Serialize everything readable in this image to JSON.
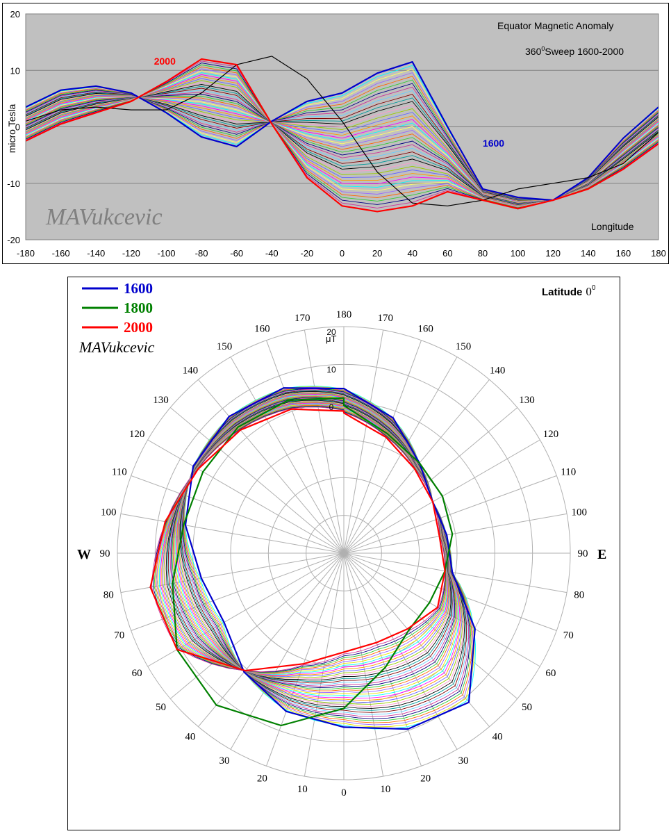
{
  "chart_data": [
    {
      "type": "line",
      "title": "Equator Magnetic Anomaly",
      "subtitle_prefix": "360",
      "subtitle_sup": "0",
      "subtitle_rest": "Sweep 1600-2000",
      "xlabel": "Longitude",
      "ylabel": "micro Tesla",
      "xlim": [
        -180,
        180
      ],
      "ylim": [
        -20,
        20
      ],
      "xticks": [
        "-180",
        "-160",
        "-140",
        "-120",
        "-100",
        "-80",
        "-60",
        "-40",
        "-20",
        "0",
        "20",
        "40",
        "60",
        "80",
        "100",
        "120",
        "140",
        "160",
        "180"
      ],
      "yticks": [
        "20",
        "10",
        "0",
        "-10",
        "-20"
      ],
      "grid": "horizontal",
      "background": "#c0c0c0",
      "watermark": "MAVukcevic",
      "annotations": [
        {
          "text": "2000",
          "color": "#ff0000",
          "x": -107,
          "y": 11
        },
        {
          "text": "1600",
          "color": "#0000cc",
          "x": 80,
          "y": -3.5
        }
      ],
      "series": [
        {
          "name": "1600",
          "color": "#0000cc",
          "width": 2.2,
          "x": [
            -180,
            -160,
            -140,
            -120,
            -100,
            -80,
            -60,
            -40,
            -20,
            0,
            20,
            40,
            60,
            80,
            100,
            120,
            140,
            160,
            180
          ],
          "y": [
            3.5,
            6.5,
            7.2,
            6,
            2.5,
            -1.8,
            -3.5,
            1,
            4.5,
            6,
            9.5,
            11.5,
            0,
            -11,
            -12.5,
            -13,
            -9,
            -2,
            3.5
          ]
        },
        {
          "name": "1800",
          "color": "#000000",
          "width": 1.2,
          "x": [
            -180,
            -160,
            -140,
            -120,
            -100,
            -80,
            -60,
            -40,
            -20,
            0,
            20,
            40,
            60,
            80,
            100,
            120,
            140,
            160,
            180
          ],
          "y": [
            1,
            3,
            3.5,
            3,
            3,
            6,
            11,
            12.5,
            8.5,
            1,
            -8,
            -13.5,
            -14,
            -13,
            -11,
            -10,
            -9,
            -6.5,
            -1
          ]
        },
        {
          "name": "2000",
          "color": "#ff0000",
          "width": 2.2,
          "x": [
            -180,
            -160,
            -140,
            -120,
            -100,
            -80,
            -60,
            -40,
            -20,
            0,
            20,
            40,
            60,
            80,
            100,
            120,
            140,
            160,
            180
          ],
          "y": [
            -2.5,
            0.5,
            2.5,
            4.5,
            8,
            12,
            11,
            0.5,
            -9,
            -14,
            -15,
            -14,
            -11.5,
            -13,
            -14.5,
            -13,
            -11,
            -7.5,
            -3
          ]
        }
      ],
      "sweep": {
        "curves": 40,
        "interpolate_between": [
          "1600",
          "2000"
        ]
      }
    },
    {
      "type": "polar_line",
      "title": "Latitude",
      "title_sup": "0",
      "unit_label": "μT",
      "rlabels": [
        "20",
        "10",
        "0"
      ],
      "west_label": "W",
      "east_label": "E",
      "angle_labels_left": [
        "10",
        "20",
        "30",
        "40",
        "50",
        "60",
        "70",
        "80",
        "90",
        "100",
        "110",
        "120",
        "130",
        "140",
        "150",
        "160",
        "170"
      ],
      "angle_labels_right": [
        "10",
        "20",
        "30",
        "40",
        "50",
        "60",
        "70",
        "80",
        "90",
        "100",
        "110",
        "120",
        "130",
        "140",
        "150",
        "160",
        "170"
      ],
      "top_label": "180",
      "bottom_label": "0",
      "watermark": "MAVukcevic",
      "legend": [
        {
          "label": "1600",
          "color": "#0000cc"
        },
        {
          "label": "1800",
          "color": "#008000"
        },
        {
          "label": "2000",
          "color": "#ff0000"
        }
      ],
      "series": [
        {
          "name": "1600",
          "color": "#0000cc",
          "lon": [
            -180,
            -160,
            -140,
            -120,
            -100,
            -80,
            -60,
            -40,
            -20,
            0,
            20,
            40,
            60,
            80,
            100,
            120,
            140,
            160,
            180
          ],
          "value": [
            3.5,
            6.5,
            7.2,
            6,
            2.5,
            -1.8,
            -3.5,
            1,
            4.5,
            6,
            9.5,
            11.5,
            0,
            -11,
            -12.5,
            -13,
            -9,
            -2,
            3.5
          ]
        },
        {
          "name": "1800",
          "color": "#008000",
          "lon": [
            -180,
            -160,
            -140,
            -120,
            -100,
            -80,
            -60,
            -40,
            -20,
            0,
            20,
            40,
            60,
            80,
            100,
            120,
            140,
            160,
            180
          ],
          "value": [
            1,
            3,
            3.5,
            3,
            3,
            6,
            11,
            12.5,
            8.5,
            1,
            -8,
            -13.5,
            -14,
            -13,
            -11,
            -10,
            -9,
            -6.5,
            -1
          ]
        },
        {
          "name": "2000",
          "color": "#ff0000",
          "lon": [
            -180,
            -160,
            -140,
            -120,
            -100,
            -80,
            -60,
            -40,
            -20,
            0,
            20,
            40,
            60,
            80,
            100,
            120,
            140,
            160,
            180
          ],
          "value": [
            -2.5,
            0.5,
            2.5,
            4.5,
            8,
            12,
            11,
            0.5,
            -9,
            -14,
            -15,
            -14,
            -11.5,
            -13,
            -14.5,
            -13,
            -11,
            -7.5,
            -3
          ]
        }
      ]
    }
  ]
}
